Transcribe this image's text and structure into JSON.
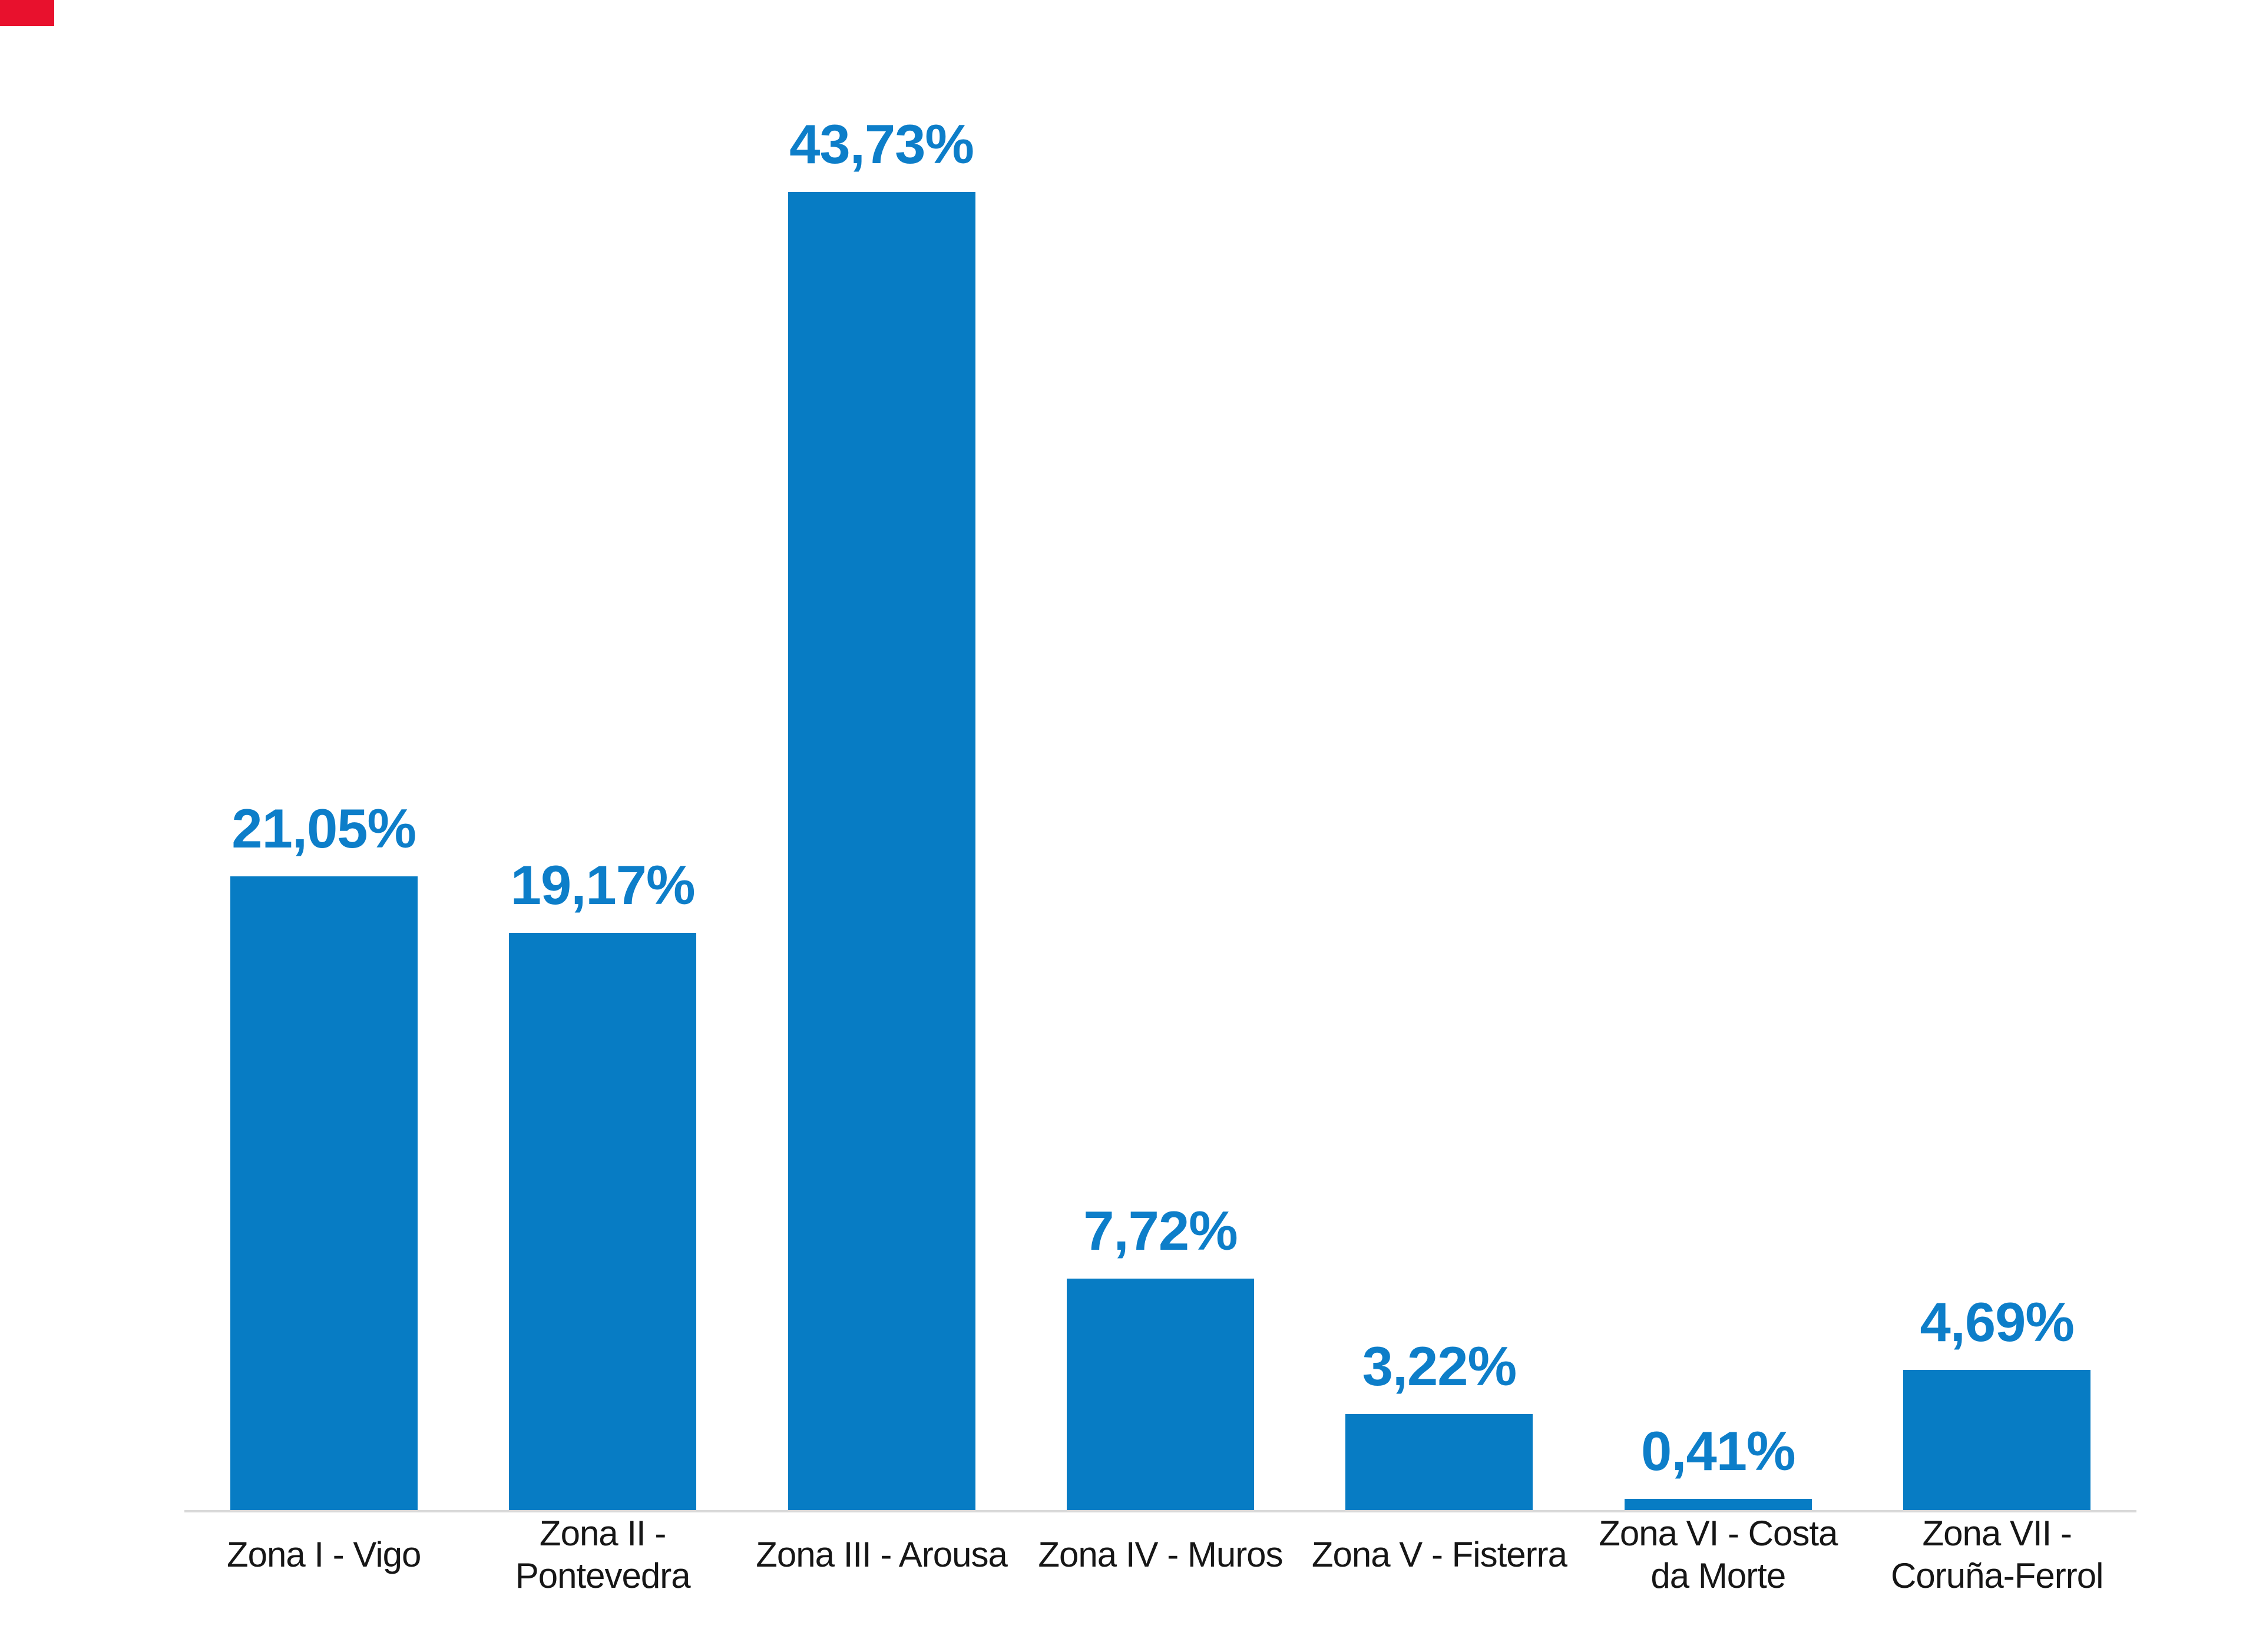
{
  "page": {
    "background": "#ffffff",
    "corner_marker_color": "#e8112d"
  },
  "chart_data": {
    "type": "bar",
    "title": "",
    "xlabel": "",
    "ylabel": "",
    "categories": [
      "Zona I - Vigo",
      "Zona II -\nPontevedra",
      "Zona III - Arousa",
      "Zona IV - Muros",
      "Zona V - Fisterra",
      "Zona VI - Costa\nda Morte",
      "Zona VII -\nCoruña-Ferrol"
    ],
    "values": [
      21.05,
      19.17,
      43.73,
      7.72,
      3.22,
      0.41,
      4.69
    ],
    "value_labels": [
      "21,05%",
      "19,17%",
      "43,73%",
      "7,72%",
      "3,22%",
      "0,41%",
      "4,69%"
    ],
    "bar_color": "#077cc4",
    "value_label_color": "#0d7ec9",
    "category_label_color": "#161616",
    "axis_line_color": "#d9d9d9",
    "ylim": [
      0,
      45
    ],
    "grid": false,
    "legend": false,
    "y_axis_visible": false,
    "data_labels_position": "above-bar"
  }
}
